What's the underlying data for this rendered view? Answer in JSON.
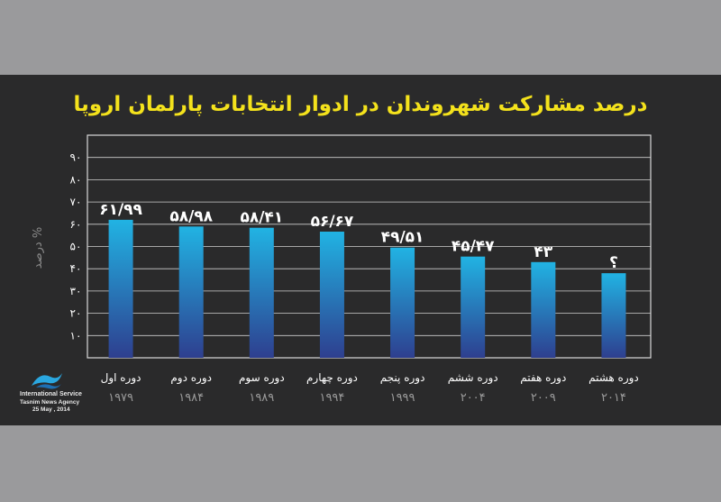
{
  "colors": {
    "background": "#9a9a9c",
    "panel": "#2a2a2b",
    "title": "#f4e21c",
    "bar_top": "#21b3e3",
    "bar_bottom": "#2e3f8f",
    "label": "#ffffff",
    "year": "#9a9a9a"
  },
  "title": "درصد مشارکت شهروندان در ادوار انتخابات پارلمان اروپا",
  "logo": {
    "icon": "tasnim-logo",
    "line1": "International Service",
    "line2": "Tasnim News Agency",
    "line3": "25 May , 2014"
  },
  "chart_data": {
    "type": "bar",
    "title": "درصد مشارکت شهروندان در ادوار انتخابات پارلمان اروپا",
    "ylabel": "درصد %",
    "xlabel": "",
    "ylim": [
      0,
      90
    ],
    "yticks": [
      "۱۰",
      "۲۰",
      "۳۰",
      "۴۰",
      "۵۰",
      "۶۰",
      "۷۰",
      "۸۰",
      "۹۰"
    ],
    "grid": true,
    "categories": [
      "دوره اول",
      "دوره دوم",
      "دوره سوم",
      "دوره چهارم",
      "دوره پنجم",
      "دوره ششم",
      "دوره هفتم",
      "دوره هشتم"
    ],
    "years": [
      "۱۹۷۹",
      "۱۹۸۴",
      "۱۹۸۹",
      "۱۹۹۴",
      "۱۹۹۹",
      "۲۰۰۴",
      "۲۰۰۹",
      "۲۰۱۴"
    ],
    "values": [
      61.99,
      58.98,
      58.41,
      56.67,
      49.51,
      45.47,
      43,
      38
    ],
    "value_labels": [
      "۶۱/۹۹",
      "۵۸/۹۸",
      "۵۸/۴۱",
      "۵۶/۶۷",
      "۴۹/۵۱",
      "۴۵/۴۷",
      "۴۳",
      "؟"
    ]
  }
}
